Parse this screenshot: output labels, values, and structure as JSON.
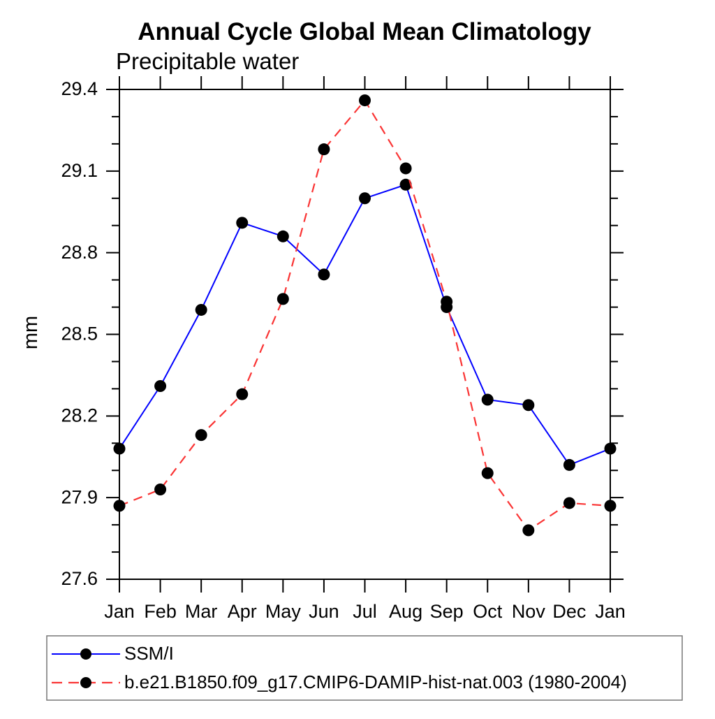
{
  "chart_data": {
    "type": "line",
    "title": "Annual Cycle Global Mean Climatology",
    "subtitle": "Precipitable water",
    "ylabel": "mm",
    "xlabel": "",
    "categories": [
      "Jan",
      "Feb",
      "Mar",
      "Apr",
      "May",
      "Jun",
      "Jul",
      "Aug",
      "Sep",
      "Oct",
      "Nov",
      "Dec",
      "Jan"
    ],
    "ylim": [
      27.6,
      29.4
    ],
    "yticks_major": [
      27.6,
      27.9,
      28.2,
      28.5,
      28.8,
      29.1,
      29.4
    ],
    "ytick_minor_step": 0.1,
    "ytick_label_format": "one-decimal",
    "grid": false,
    "frame": "full-box-outward-ticks",
    "legend_position": "bottom-left-boxed",
    "series": [
      {
        "name": "SSM/I",
        "line_color": "#0000ff",
        "line_style": "solid",
        "marker": "black-filled-circle",
        "marker_color": "#000000",
        "values": [
          28.08,
          28.31,
          28.59,
          28.91,
          28.86,
          28.72,
          29.0,
          29.05,
          28.6,
          28.26,
          28.24,
          28.02,
          28.08
        ]
      },
      {
        "name": "b.e21.B1850.f09_g17.CMIP6-DAMIP-hist-nat.003 (1980-2004)",
        "line_color": "#fa3434",
        "line_style": "dashed",
        "marker": "black-filled-circle",
        "marker_color": "#000000",
        "values": [
          27.87,
          27.93,
          28.13,
          28.28,
          28.63,
          29.18,
          29.36,
          29.11,
          28.62,
          27.99,
          27.78,
          27.88,
          27.87
        ]
      }
    ],
    "colors": {
      "axis": "#000000",
      "text": "#000000",
      "legend_border": "#777777",
      "background": "#ffffff"
    }
  }
}
